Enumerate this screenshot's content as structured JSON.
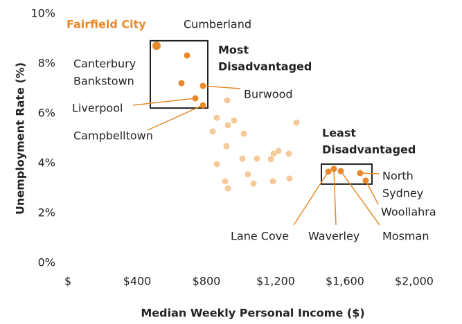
{
  "chart_data": {
    "type": "scatter",
    "x_label": "Median Weekly Personal Income ($)",
    "y_label": "Unemployment Rate (%)",
    "xlim": [
      0,
      2000
    ],
    "ylim": [
      0,
      10
    ],
    "xticks": [
      {
        "value": 0,
        "label": "$"
      },
      {
        "value": 400,
        "label": "$400"
      },
      {
        "value": 800,
        "label": "$800"
      },
      {
        "value": 1200,
        "label": "$1,200"
      },
      {
        "value": 1600,
        "label": "$1,600"
      },
      {
        "value": 2000,
        "label": "$2,000"
      }
    ],
    "yticks": [
      {
        "value": 0,
        "label": "0%"
      },
      {
        "value": 2,
        "label": "2%"
      },
      {
        "value": 4,
        "label": "4%"
      },
      {
        "value": 6,
        "label": "6%"
      },
      {
        "value": 8,
        "label": "8%"
      },
      {
        "value": 10,
        "label": "10%"
      }
    ],
    "highlight_color": "#e8892b",
    "other_color": "#f5c99a",
    "labeled_points": [
      {
        "label": [
          "Fairfield City"
        ],
        "x": 512,
        "y": 8.72
      },
      {
        "label": [
          "Cumberland"
        ],
        "x": 688,
        "y": 8.33
      },
      {
        "label": [
          "Canterbury",
          "Bankstown"
        ],
        "x": 656,
        "y": 7.22
      },
      {
        "label": [
          "Burwood"
        ],
        "x": 780,
        "y": 7.11
      },
      {
        "label": [
          "Liverpool"
        ],
        "x": 736,
        "y": 6.61
      },
      {
        "label": [
          "Campbelltown"
        ],
        "x": 780,
        "y": 6.33
      },
      {
        "label": [
          "Lane Cove"
        ],
        "x": 1504,
        "y": 3.67
      },
      {
        "label": [
          "Waverley"
        ],
        "x": 1536,
        "y": 3.78
      },
      {
        "label": [
          "Mosman"
        ],
        "x": 1576,
        "y": 3.69
      },
      {
        "label": [
          "North",
          "Sydney"
        ],
        "x": 1688,
        "y": 3.61
      },
      {
        "label": [
          "Woollahra"
        ],
        "x": 1720,
        "y": 3.31
      }
    ],
    "other_points": {
      "x": [
        920,
        860,
        924,
        960,
        1016,
        836,
        1320,
        916,
        860,
        1008,
        1092,
        1172,
        1188,
        1216,
        1276,
        1040,
        1072,
        1184,
        1280,
        908,
        924
      ],
      "y": [
        6.53,
        5.83,
        5.53,
        5.72,
        5.19,
        5.28,
        5.64,
        4.69,
        3.97,
        4.19,
        4.19,
        4.17,
        4.39,
        4.5,
        4.39,
        3.56,
        3.19,
        3.28,
        3.39,
        3.28,
        3.0
      ]
    },
    "boxes": [
      {
        "label": [
          "Most",
          "Disadvantaged"
        ],
        "x": [
          476,
          808
        ],
        "y": [
          6.22,
          8.92
        ]
      },
      {
        "label": [
          "Least",
          "Disadvantaged"
        ],
        "x": [
          1464,
          1756
        ],
        "y": [
          3.17,
          3.97
        ]
      }
    ]
  }
}
